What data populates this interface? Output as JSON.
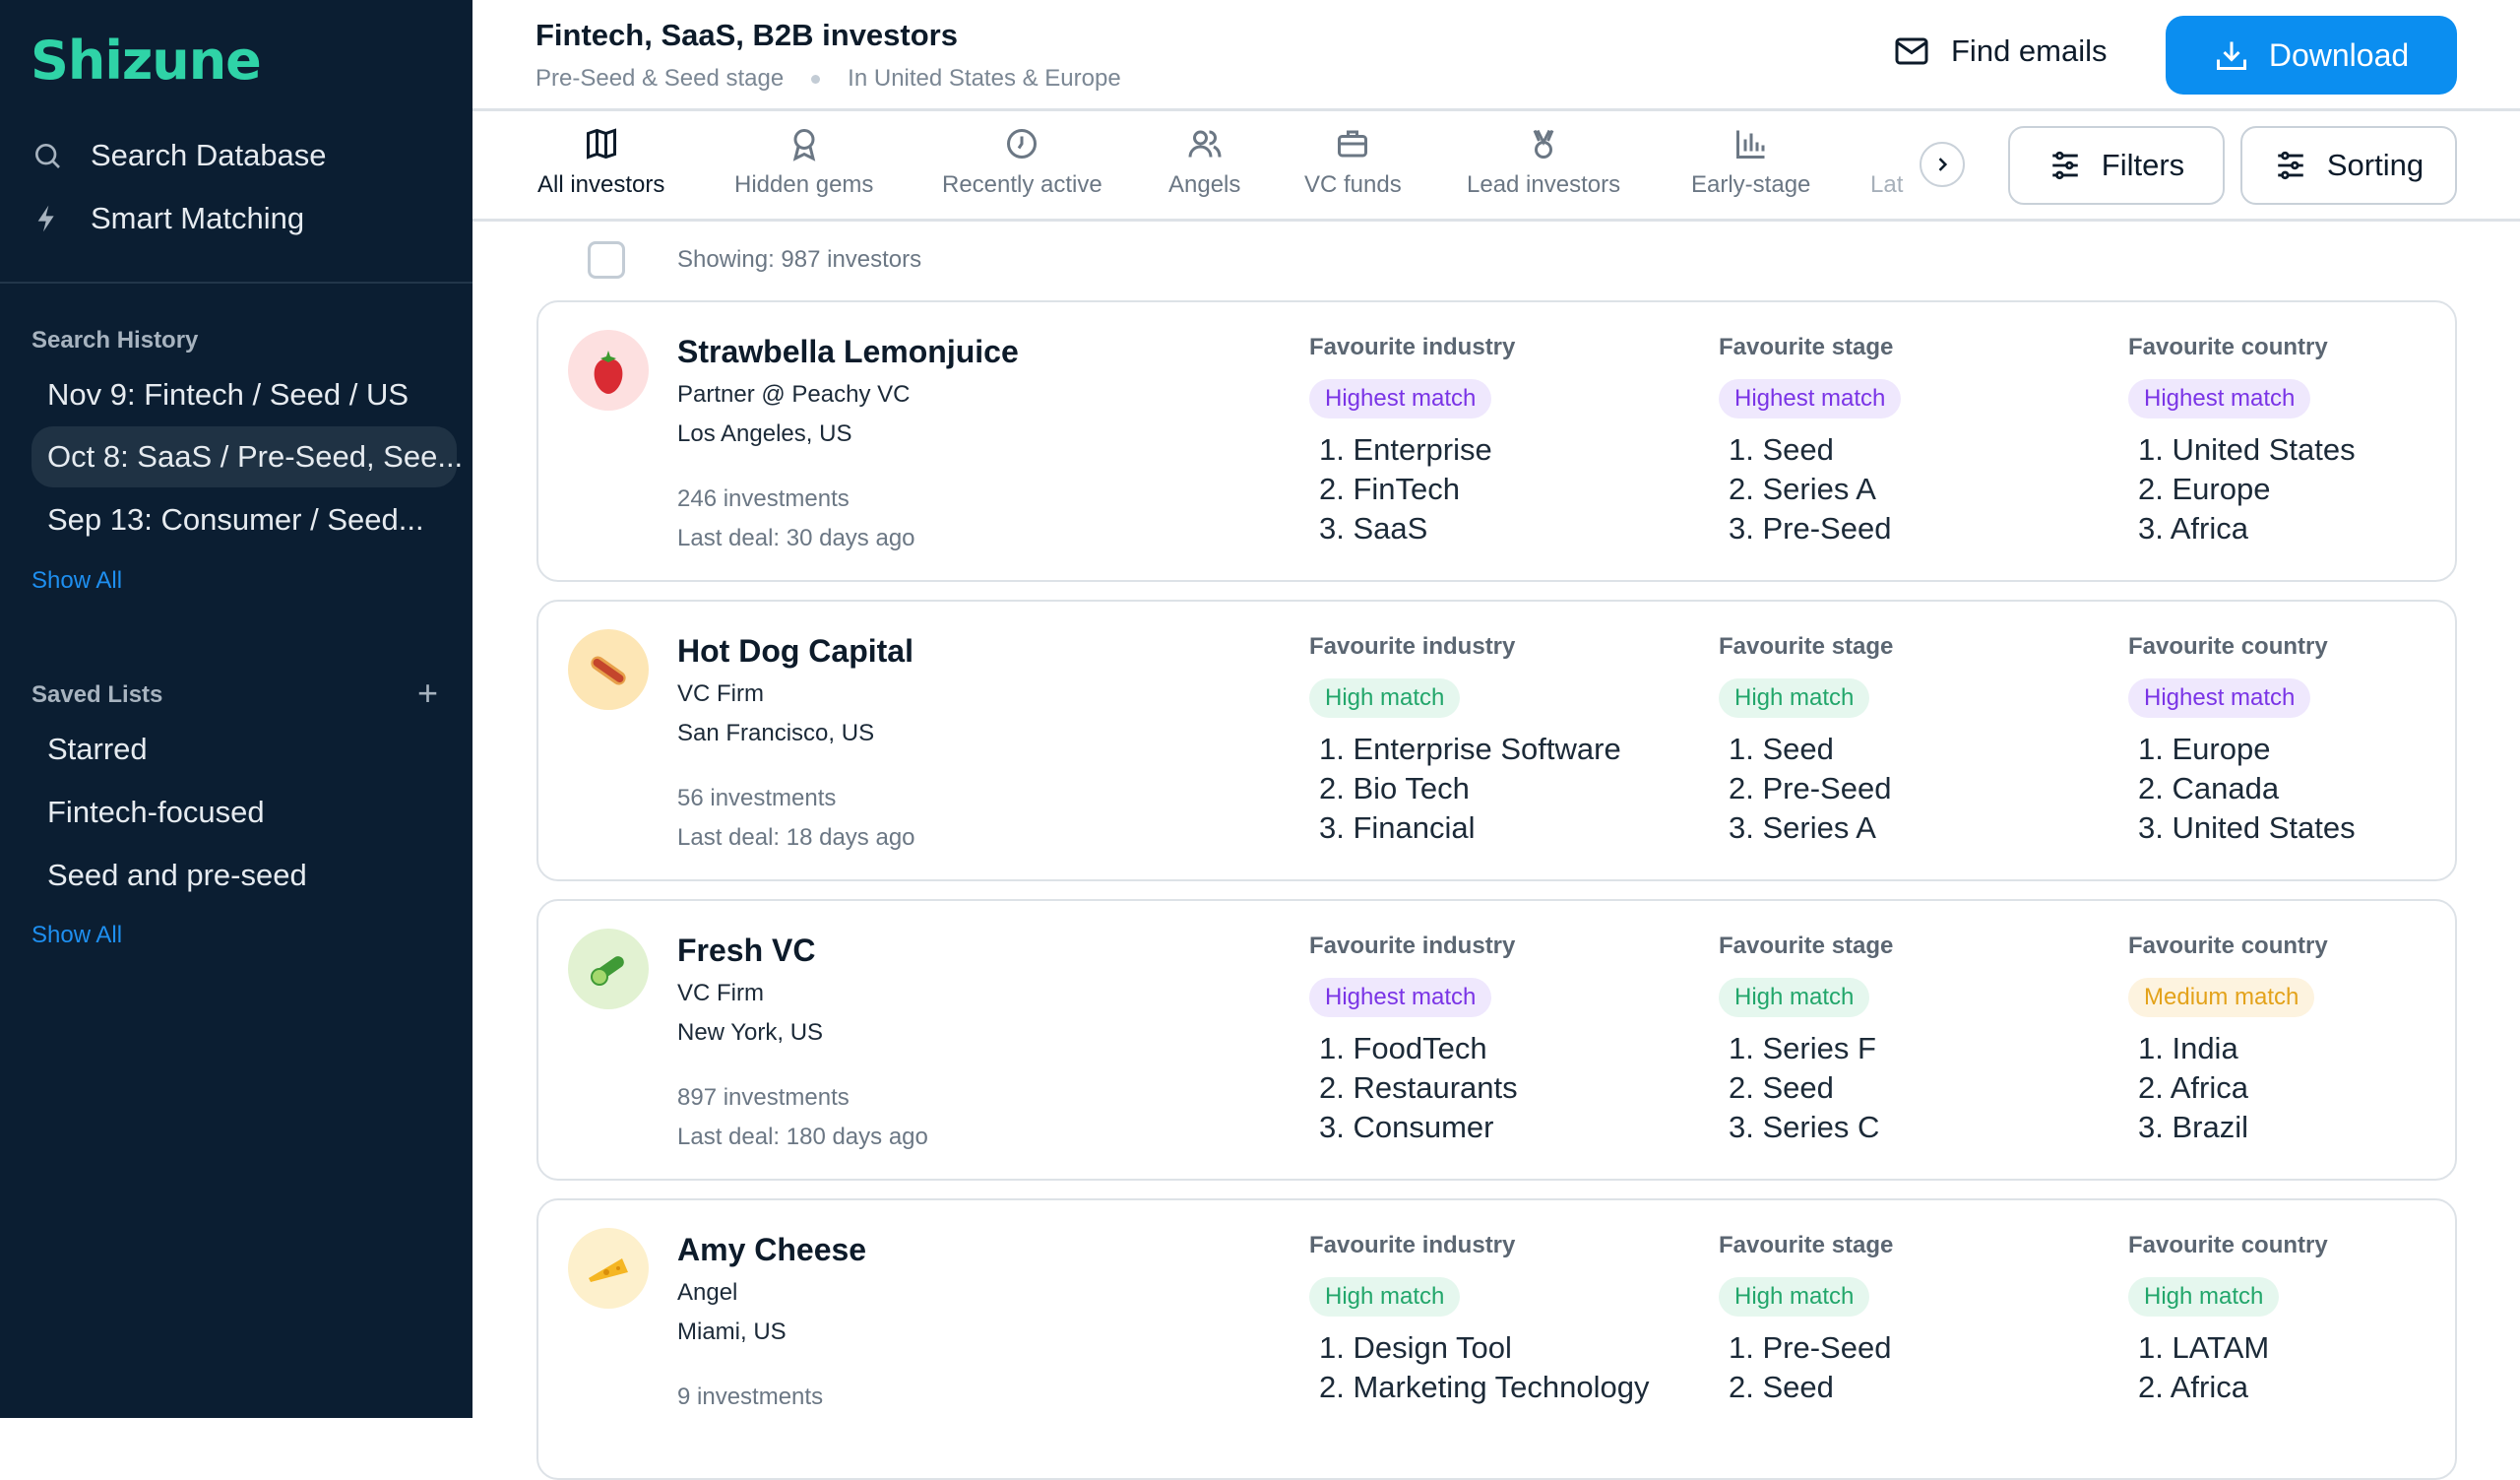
{
  "app": {
    "logo": "Shizune"
  },
  "sidebar": {
    "nav": [
      {
        "label": "Search Database",
        "icon": "search-icon"
      },
      {
        "label": "Smart Matching",
        "icon": "lightning-icon"
      }
    ],
    "history_title": "Search History",
    "history": [
      "Nov 9: Fintech / Seed / US",
      "Oct 8: SaaS / Pre-Seed, See...",
      "Sep 13: Consumer / Seed..."
    ],
    "history_active": 1,
    "show_all": "Show All",
    "saved_title": "Saved Lists",
    "saved": [
      "Starred",
      "Fintech-focused",
      "Seed and pre-seed"
    ],
    "saved_show_all": "Show All"
  },
  "header": {
    "title": "Fintech, SaaS, B2B investors",
    "stage": "Pre-Seed & Seed stage",
    "region": "In United States & Europe",
    "find_emails": "Find emails",
    "download": "Download"
  },
  "tabs": [
    {
      "label": "All investors"
    },
    {
      "label": "Hidden gems"
    },
    {
      "label": "Recently active"
    },
    {
      "label": "Angels"
    },
    {
      "label": "VC funds"
    },
    {
      "label": "Lead investors"
    },
    {
      "label": "Early-stage"
    },
    {
      "label": "Lat"
    }
  ],
  "toolbar": {
    "filters": "Filters",
    "sorting": "Sorting",
    "showing": "Showing: 987 investors"
  },
  "labels": {
    "industry": "Favourite industry",
    "stage": "Favourite stage",
    "country": "Favourite country"
  },
  "investors": [
    {
      "name": "Strawbella Lemonjuice",
      "role": "Partner @ Peachy VC",
      "location": "Los Angeles, US",
      "investments": "246 investments",
      "last_deal": "Last deal: 30 days ago",
      "avatar": "strawberry-icon",
      "industry": {
        "match": "Highest match",
        "items": [
          "1. Enterprise",
          "2. FinTech",
          "3. SaaS"
        ]
      },
      "stage": {
        "match": "Highest match",
        "items": [
          "1. Seed",
          "2. Series A",
          "3. Pre-Seed"
        ]
      },
      "country": {
        "match": "Highest match",
        "items": [
          "1. United States",
          "2. Europe",
          "3. Africa"
        ]
      }
    },
    {
      "name": "Hot Dog Capital",
      "role": "VC Firm",
      "location": "San Francisco, US",
      "investments": "56 investments",
      "last_deal": "Last deal: 18 days ago",
      "avatar": "hotdog-icon",
      "industry": {
        "match": "High match",
        "items": [
          "1. Enterprise Software",
          "2. Bio Tech",
          "3. Financial"
        ]
      },
      "stage": {
        "match": "High match",
        "items": [
          "1. Seed",
          "2. Pre-Seed",
          "3. Series A"
        ]
      },
      "country": {
        "match": "Highest match",
        "items": [
          "1. Europe",
          "2. Canada",
          "3. United States"
        ]
      }
    },
    {
      "name": "Fresh VC",
      "role": "VC Firm",
      "location": "New York, US",
      "investments": "897 investments",
      "last_deal": "Last deal: 180 days ago",
      "avatar": "cucumber-icon",
      "industry": {
        "match": "Highest match",
        "items": [
          "1. FoodTech",
          "2. Restaurants",
          "3. Consumer"
        ]
      },
      "stage": {
        "match": "High match",
        "items": [
          "1. Series F",
          "2. Seed",
          "3. Series C"
        ]
      },
      "country": {
        "match": "Medium match",
        "items": [
          "1. India",
          "2. Africa",
          "3. Brazil"
        ]
      }
    },
    {
      "name": "Amy Cheese",
      "role": "Angel",
      "location": "Miami, US",
      "investments": "9 investments",
      "avatar": "cheese-icon",
      "industry": {
        "match": "High match",
        "items": [
          "1. Design Tool",
          "2. Marketing Technology"
        ]
      },
      "stage": {
        "match": "High match",
        "items": [
          "1. Pre-Seed",
          "2. Seed"
        ]
      },
      "country": {
        "match": "High match",
        "items": [
          "1. LATAM",
          "2. Africa"
        ]
      }
    }
  ],
  "colors": {
    "sidebar": "#0b1e32",
    "brand": "#2fd3a7",
    "accent": "#0b8ef0"
  }
}
